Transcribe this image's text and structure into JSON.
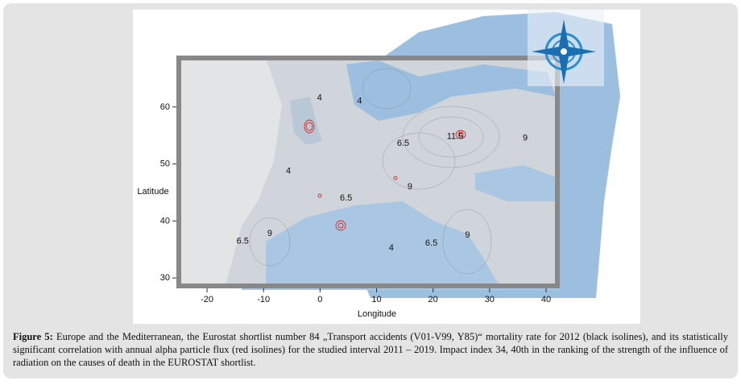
{
  "figure": {
    "x_label": "Longitude",
    "y_label": "Latitude",
    "xlim": [
      -25,
      42
    ],
    "ylim": [
      28.6,
      68.6
    ],
    "xticks": [
      -20,
      -10,
      0,
      10,
      20,
      30,
      40
    ],
    "yticks": [
      30,
      40,
      50,
      60
    ],
    "contour_labels": [
      {
        "level": 4,
        "x": -0.1,
        "y": 61.6
      },
      {
        "level": 4,
        "x": 7,
        "y": 61
      },
      {
        "level": 11.5,
        "x": 23.9,
        "y": 54.8
      },
      {
        "level": 9,
        "x": 36.3,
        "y": 54.5
      },
      {
        "level": 6.5,
        "x": 14.7,
        "y": 53.6
      },
      {
        "level": 4,
        "x": -5.6,
        "y": 48.7
      },
      {
        "level": 9,
        "x": 15.9,
        "y": 46
      },
      {
        "level": 6.5,
        "x": 4.6,
        "y": 44
      },
      {
        "level": 9,
        "x": -8.9,
        "y": 37.8
      },
      {
        "level": 6.5,
        "x": -13.7,
        "y": 36.4
      },
      {
        "level": 4,
        "x": 12.6,
        "y": 35.2
      },
      {
        "level": 6.5,
        "x": 19.7,
        "y": 36.1
      },
      {
        "level": 9,
        "x": 26.1,
        "y": 37.5
      }
    ]
  },
  "caption": {
    "label": "Figure 5:",
    "text": "Europe and the Mediterranean, the Eurostat shortlist number 84 „Transport accidents (V01-V99, Y85)“ mortality rate for 2012 (black isolines), and its statistically significant correlation with annual alpha particle flux (red isolines) for the studied interval 2011 – 2019. Impact index 34, 40th in the ranking of the strength of the influence of radiation on the causes of death in the EUROSTAT shortlist."
  }
}
